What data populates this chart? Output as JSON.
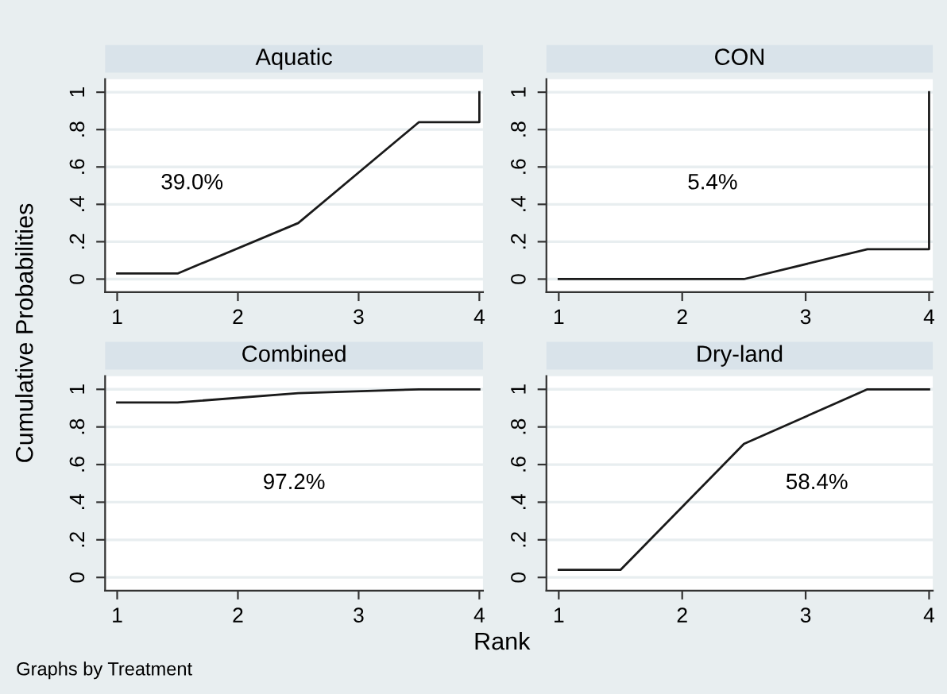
{
  "chart_data": [
    {
      "type": "line",
      "title": "Aquatic",
      "ylabel": "Cumulative Probabilities",
      "x": [
        1,
        1.5,
        2.5,
        3.5,
        4,
        4
      ],
      "series": [
        {
          "color": "#1a1a1a",
          "values": [
            0.03,
            0.03,
            0.3,
            0.84,
            0.84,
            1
          ]
        }
      ],
      "annotations": [
        "39.0%"
      ],
      "xlim": [
        0.9,
        4.03
      ],
      "ylim": [
        -0.07,
        1.07
      ],
      "xticks": [
        1,
        2,
        3,
        4
      ],
      "yticks": [
        0,
        {
          "value": 0.2,
          "label": ".2"
        },
        {
          "value": 0.4,
          "label": ".4"
        },
        {
          "value": 0.6,
          "label": ".6"
        },
        {
          "value": 0.8,
          "label": ".8"
        },
        1
      ],
      "grid": "y",
      "marker": "none",
      "line_style": "solid",
      "legend": false
    },
    {
      "type": "line",
      "title": "CON",
      "x": [
        1,
        1.5,
        2.5,
        3.5,
        4,
        4
      ],
      "series": [
        {
          "color": "#1a1a1a",
          "values": [
            0,
            0,
            0,
            0.16,
            0.16,
            1
          ]
        }
      ],
      "annotations": [
        "5.4%"
      ],
      "xlim": [
        0.9,
        4.03
      ],
      "ylim": [
        -0.07,
        1.07
      ],
      "xticks": [
        1,
        2,
        3,
        4
      ],
      "yticks": [
        0,
        {
          "value": 0.2,
          "label": ".2"
        },
        {
          "value": 0.4,
          "label": ".4"
        },
        {
          "value": 0.6,
          "label": ".6"
        },
        {
          "value": 0.8,
          "label": ".8"
        },
        1
      ],
      "grid": "y",
      "marker": "none",
      "line_style": "solid",
      "legend": false
    },
    {
      "type": "line",
      "title": "Combined",
      "x": [
        1,
        1.5,
        2.5,
        3.5,
        4
      ],
      "series": [
        {
          "color": "#1a1a1a",
          "values": [
            0.93,
            0.93,
            0.98,
            1,
            1
          ]
        }
      ],
      "annotations": [
        "97.2%",
        "Graphs by Treatment"
      ],
      "xlim": [
        0.9,
        4.03
      ],
      "ylim": [
        -0.07,
        1.07
      ],
      "xticks": [
        1,
        2,
        3,
        4
      ],
      "yticks": [
        0,
        {
          "value": 0.2,
          "label": ".2"
        },
        {
          "value": 0.4,
          "label": ".4"
        },
        {
          "value": 0.6,
          "label": ".6"
        },
        {
          "value": 0.8,
          "label": ".8"
        },
        1
      ],
      "grid": "y",
      "marker": "none",
      "line_style": "solid",
      "legend": false
    },
    {
      "type": "line",
      "title": "Dry-land",
      "xlabel": "Rank",
      "x": [
        1,
        1.5,
        2.5,
        3.5,
        4
      ],
      "series": [
        {
          "color": "#1a1a1a",
          "values": [
            0.04,
            0.04,
            0.71,
            1,
            1
          ]
        }
      ],
      "annotations": [
        "58.4%"
      ],
      "xlim": [
        0.9,
        4.03
      ],
      "ylim": [
        -0.07,
        1.07
      ],
      "xticks": [
        1,
        2,
        3,
        4
      ],
      "yticks": [
        0,
        {
          "value": 0.2,
          "label": ".2"
        },
        {
          "value": 0.4,
          "label": ".4"
        },
        {
          "value": 0.6,
          "label": ".6"
        },
        {
          "value": 0.8,
          "label": ".8"
        },
        1
      ],
      "grid": "y",
      "marker": "none",
      "line_style": "solid",
      "legend": false
    }
  ]
}
